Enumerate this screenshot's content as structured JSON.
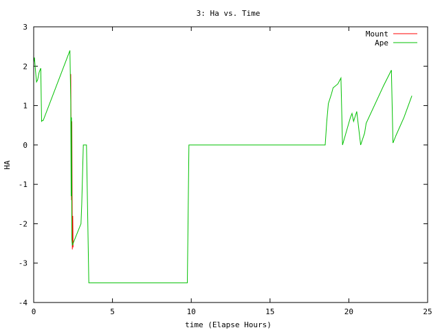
{
  "chart_data": {
    "type": "line",
    "title": "3: Ha vs. Time",
    "xlabel": "time (Elapse Hours)",
    "ylabel": "HA",
    "xlim": [
      0,
      25
    ],
    "ylim": [
      -4,
      3
    ],
    "xticks": [
      0,
      5,
      10,
      15,
      20,
      25
    ],
    "yticks": [
      -4,
      -3,
      -2,
      -1,
      0,
      1,
      2,
      3
    ],
    "grid": false,
    "legend_position": "top-right",
    "series": [
      {
        "name": "Mount",
        "color": "#ff0000",
        "x": [
          2.35,
          2.38,
          2.4,
          2.42,
          2.45,
          2.48,
          2.5
        ],
        "y": [
          1.8,
          0.0,
          -1.4,
          0.6,
          -2.65,
          -1.8,
          -2.6
        ]
      },
      {
        "name": "Ape",
        "color": "#00c000",
        "x": [
          0.0,
          0.05,
          0.12,
          0.18,
          0.25,
          0.35,
          0.45,
          0.5,
          0.55,
          0.6,
          2.3,
          2.35,
          2.38,
          2.4,
          2.42,
          2.45,
          2.5,
          2.6,
          3.0,
          3.05,
          3.15,
          3.3,
          3.35,
          3.5,
          9.5,
          9.75,
          9.85,
          10.0,
          18.5,
          18.6,
          18.7,
          18.9,
          19.0,
          19.3,
          19.5,
          19.6,
          20.1,
          20.2,
          20.3,
          20.5,
          20.75,
          21.0,
          21.1,
          22.2,
          22.7,
          22.8,
          23.0,
          23.5,
          24.0
        ],
        "y": [
          2.1,
          2.22,
          1.85,
          1.6,
          1.65,
          1.85,
          1.95,
          0.6,
          0.62,
          0.62,
          2.4,
          1.1,
          -1.3,
          0.7,
          -2.4,
          -2.55,
          -2.5,
          -2.4,
          -2.0,
          -1.5,
          0.0,
          0.0,
          0.0,
          -3.5,
          -3.5,
          -3.5,
          0.0,
          0.0,
          0.0,
          0.6,
          1.05,
          1.3,
          1.45,
          1.55,
          1.7,
          0.0,
          0.7,
          0.8,
          0.6,
          0.85,
          0.0,
          0.3,
          0.55,
          1.5,
          1.9,
          0.05,
          0.25,
          0.7,
          1.25
        ]
      }
    ]
  }
}
